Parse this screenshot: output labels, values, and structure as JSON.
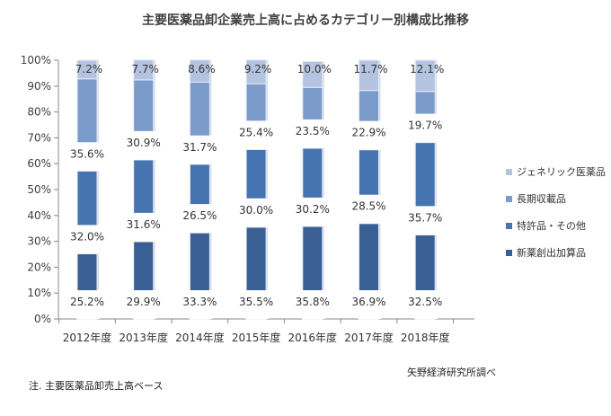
{
  "chart_data": {
    "type": "bar",
    "stacked": true,
    "title": "主要医薬品卸企業売上高に占めるカテゴリー別構成比推移",
    "categories": [
      "2012年度",
      "2013年度",
      "2014年度",
      "2015年度",
      "2016年度",
      "2017年度",
      "2018年度"
    ],
    "series": [
      {
        "name": "新薬創出加算品",
        "color": "#3a5f95",
        "values": [
          25.2,
          29.9,
          33.3,
          35.5,
          35.8,
          36.9,
          32.5
        ],
        "labels": [
          "25.2%",
          "29.9%",
          "33.3%",
          "35.5%",
          "35.8%",
          "36.9%",
          "32.5%"
        ]
      },
      {
        "name": "特許品・その他",
        "color": "#4674b0",
        "values": [
          32.0,
          31.6,
          26.5,
          30.0,
          30.2,
          28.5,
          35.7
        ],
        "labels": [
          "32.0%",
          "31.6%",
          "26.5%",
          "30.0%",
          "30.2%",
          "28.5%",
          "35.7%"
        ]
      },
      {
        "name": "長期収載品",
        "color": "#7b9bcb",
        "values": [
          35.6,
          30.9,
          31.7,
          25.4,
          23.5,
          22.9,
          19.7
        ],
        "labels": [
          "35.6%",
          "30.9%",
          "31.7%",
          "25.4%",
          "23.5%",
          "22.9%",
          "19.7%"
        ]
      },
      {
        "name": "ジェネリック医薬品",
        "color": "#b4c4e0",
        "values": [
          7.2,
          7.7,
          8.6,
          9.2,
          10.0,
          11.7,
          12.1
        ],
        "labels": [
          "7.2%",
          "7.7%",
          "8.6%",
          "9.2%",
          "10.0%",
          "11.7%",
          "12.1%"
        ]
      }
    ],
    "yticks": [
      "0%",
      "10%",
      "20%",
      "30%",
      "40%",
      "50%",
      "60%",
      "70%",
      "80%",
      "90%",
      "100%"
    ],
    "ylim": [
      0,
      100
    ],
    "legend_position": "right",
    "grid": false
  },
  "legend": [
    "ジェネリック医薬品",
    "長期収載品",
    "特許品・その他",
    "新薬創出加算品"
  ],
  "footnote": "注. 主要医薬品卸売上高ベース",
  "source": "矢野経済研究所調べ"
}
